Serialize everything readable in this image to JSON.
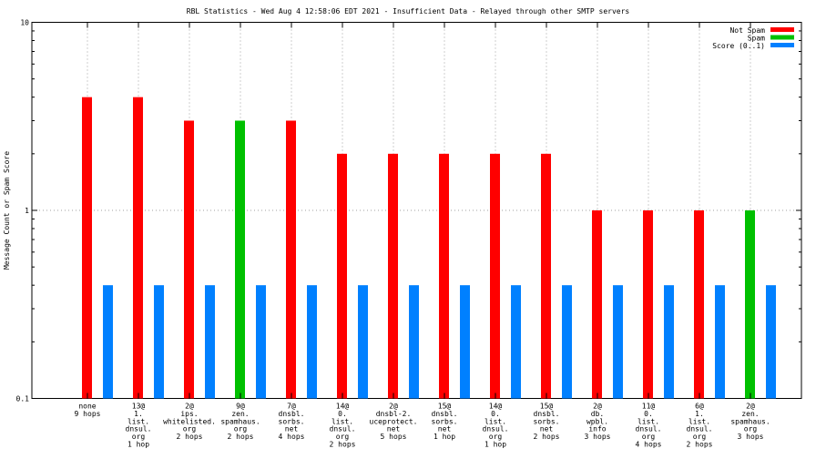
{
  "chart_data": {
    "type": "bar",
    "title": "RBL Statistics - Wed Aug  4 12:58:06 EDT 2021 - Insufficient Data - Relayed through other SMTP servers",
    "ylabel": "Message Count or Spam Score",
    "xlabel": "",
    "yscale": "log",
    "ylim": [
      0.1,
      10
    ],
    "yticks": [
      "0.1",
      "1",
      "10"
    ],
    "grid": true,
    "legend_position": "top-right",
    "categories": [
      [
        "none",
        "9 hops"
      ],
      [
        "13@",
        "1.",
        "list.",
        "dnsul.",
        "org",
        "1 hop"
      ],
      [
        "2@",
        "ips.",
        "whitelisted.",
        "org",
        "2 hops"
      ],
      [
        "9@",
        "zen.",
        "spamhaus.",
        "org",
        "2 hops"
      ],
      [
        "7@",
        "dnsbl.",
        "sorbs.",
        "net",
        "4 hops"
      ],
      [
        "14@",
        "0.",
        "list.",
        "dnsul.",
        "org",
        "2 hops"
      ],
      [
        "2@",
        "dnsbl-2.",
        "uceprotect.",
        "net",
        "5 hops"
      ],
      [
        "15@",
        "dnsbl.",
        "sorbs.",
        "net",
        "1 hop"
      ],
      [
        "14@",
        "0.",
        "list.",
        "dnsul.",
        "org",
        "1 hop"
      ],
      [
        "15@",
        "dnsbl.",
        "sorbs.",
        "net",
        "2 hops"
      ],
      [
        "2@",
        "db.",
        "wpbl.",
        "info",
        "3 hops"
      ],
      [
        "11@",
        "0.",
        "list.",
        "dnsul.",
        "org",
        "4 hops"
      ],
      [
        "6@",
        "1.",
        "list.",
        "dnsul.",
        "org",
        "2 hops"
      ],
      [
        "2@",
        "zen.",
        "spamhaus.",
        "org",
        "3 hops"
      ]
    ],
    "series": [
      {
        "name": "Not Spam",
        "color": "#ff0000",
        "values": [
          4,
          4,
          3,
          0,
          3,
          2,
          2,
          2,
          2,
          2,
          1,
          1,
          1,
          0
        ]
      },
      {
        "name": "Spam",
        "color": "#00c000",
        "values": [
          0,
          0,
          0,
          3,
          0,
          0,
          0,
          0,
          0,
          0,
          0,
          0,
          0,
          1
        ]
      },
      {
        "name": "Score (0..1)",
        "color": "#0080ff",
        "values": [
          0.4,
          0.4,
          0.4,
          0.4,
          0.4,
          0.4,
          0.4,
          0.4,
          0.4,
          0.4,
          0.4,
          0.4,
          0.4,
          0.4
        ]
      }
    ]
  }
}
